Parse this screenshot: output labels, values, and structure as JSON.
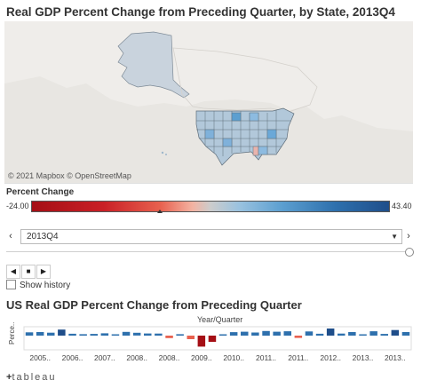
{
  "dashboard": {
    "title": "Real GDP Percent Change from Preceding Quarter, by State, 2013Q4",
    "map_attribution": "© 2021 Mapbox  © OpenStreetMap",
    "legend": {
      "title": "Percent Change",
      "min_label": "-24.00",
      "max_label": "43.40",
      "colors": {
        "negative": "#c92026",
        "neutral": "#cccccc",
        "positive": "#2e70ad"
      }
    },
    "filter": {
      "selected_quarter": "2013Q4",
      "prev_icon": "chevron-left-icon",
      "next_icon": "chevron-right-icon",
      "dropdown_icon": "triangle-down-icon"
    },
    "playback": {
      "icons": [
        "chevron-left-icon",
        "stop-icon",
        "chevron-right-icon"
      ]
    },
    "show_history_label": "Show history",
    "chart_title": "US Real GDP Percent Change from Preceding Quarter",
    "chart_header": "Year/Quarter",
    "y_label": "Perce..",
    "footer": {
      "logo_plus": "+",
      "logo_text": "tableau"
    }
  },
  "chart_data": {
    "type": "bar",
    "title": "US Real GDP Percent Change from Preceding Quarter",
    "xlabel": "Year/Quarter",
    "ylabel": "Perce..",
    "year_labels": [
      "2005..",
      "2006..",
      "2007..",
      "2008..",
      "2008..",
      "2009..",
      "2010..",
      "2011..",
      "2011..",
      "2012..",
      "2013..",
      "2013.."
    ],
    "values": [
      2.1,
      2.3,
      1.9,
      3.9,
      1.2,
      0.9,
      1.1,
      1.5,
      0.5,
      2.4,
      1.8,
      1.4,
      1.3,
      -1.6,
      0.9,
      -2.3,
      -7.1,
      -4.0,
      0.4,
      2.2,
      2.5,
      2.0,
      3.0,
      2.5,
      2.8,
      -1.5,
      2.7,
      1.2,
      4.6,
      1.3,
      2.3,
      0.4,
      2.8,
      1.1,
      3.6,
      2.3
    ],
    "colors": {
      "positive": "#2e70ad",
      "strong_positive": "#1f4e8a",
      "negative": "#e8614f",
      "strong_negative": "#a50f15"
    },
    "grid": false
  }
}
